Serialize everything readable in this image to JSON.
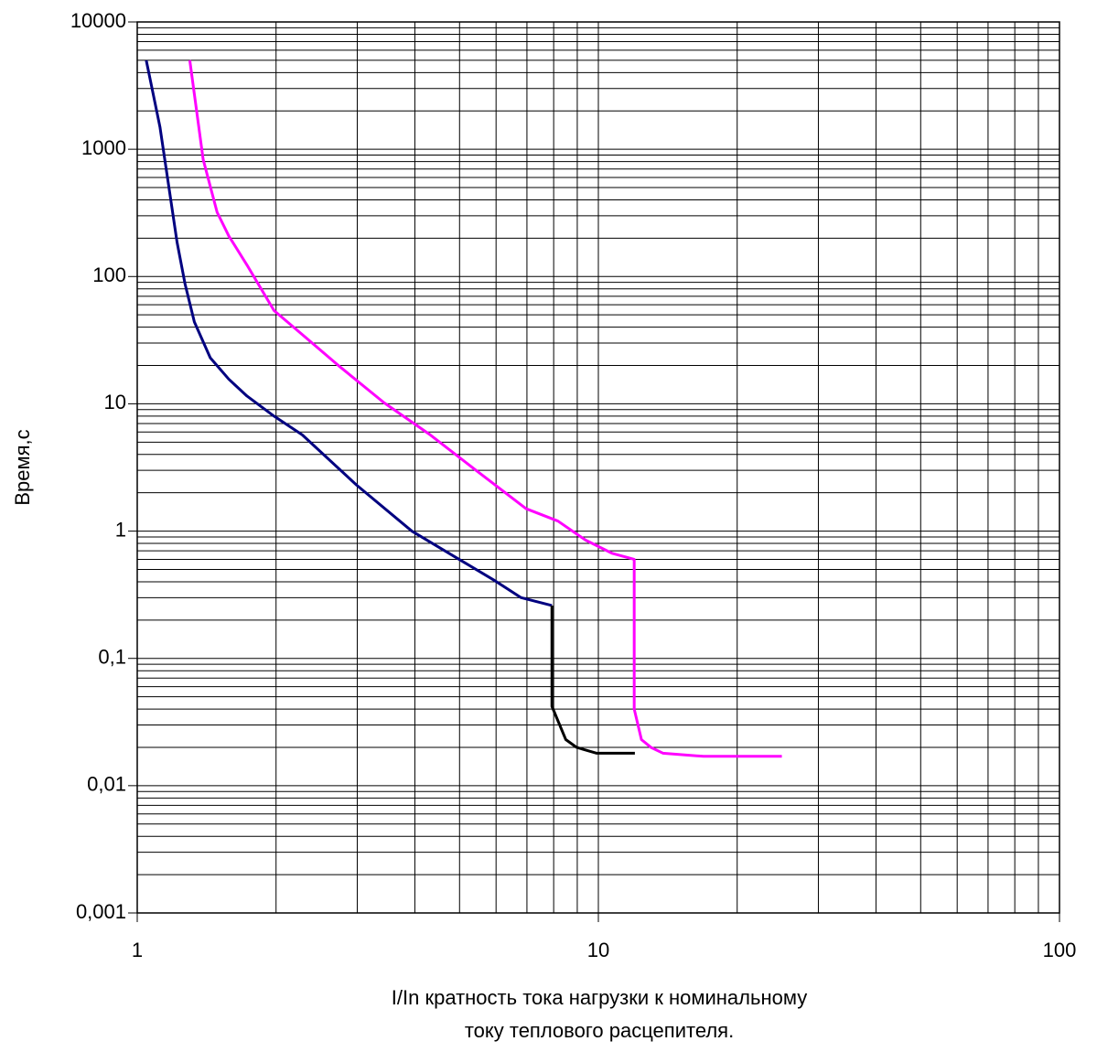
{
  "chart_data": {
    "type": "line",
    "xlabel": [
      "I/In кратность тока нагрузки к номинальному",
      "току теплового расцепителя."
    ],
    "ylabel": "Время,с",
    "xscale": "log",
    "yscale": "log",
    "xlim": [
      1,
      100
    ],
    "ylim": [
      0.001,
      10000
    ],
    "xticks": [
      1,
      10,
      100
    ],
    "yticks": [
      {
        "value": 0.001,
        "label": "0,001"
      },
      {
        "value": 0.01,
        "label": "0,01"
      },
      {
        "value": 0.1,
        "label": "0,1"
      },
      1,
      10,
      100,
      1000,
      10000
    ],
    "grid": true,
    "minor_grid": true,
    "series": [
      {
        "color": "#000080",
        "x": [
          1.046,
          1.12,
          1.22,
          1.27,
          1.33,
          1.44,
          1.58,
          1.73,
          1.98,
          2.28,
          2.99,
          3.94,
          4.95,
          5.95,
          6.8,
          7.93
        ],
        "values": [
          5000,
          1500,
          186,
          87,
          44,
          23,
          15.6,
          11.5,
          8,
          5.7,
          2.3,
          1.0,
          0.61,
          0.41,
          0.3,
          0.26
        ]
      },
      {
        "color": "#000000",
        "x": [
          7.93,
          7.93,
          8.5,
          8.97,
          9.9,
          12.0
        ],
        "values": [
          0.26,
          0.042,
          0.023,
          0.02,
          0.018,
          0.018
        ]
      },
      {
        "color": "#ff00ff",
        "x": [
          1.3,
          1.39,
          1.49,
          1.58,
          1.73,
          1.98,
          2.28,
          2.73,
          3.43,
          4.32,
          5.43,
          6.97,
          8.17,
          9.38,
          10.7,
          11.96,
          11.96,
          12.4,
          13.0,
          13.8,
          16.9,
          25.0
        ],
        "values": [
          5000,
          830,
          320,
          208,
          123,
          54,
          35,
          20,
          10.2,
          5.7,
          3.0,
          1.5,
          1.2,
          0.85,
          0.67,
          0.6,
          0.04,
          0.023,
          0.02,
          0.018,
          0.017,
          0.017
        ]
      }
    ]
  }
}
